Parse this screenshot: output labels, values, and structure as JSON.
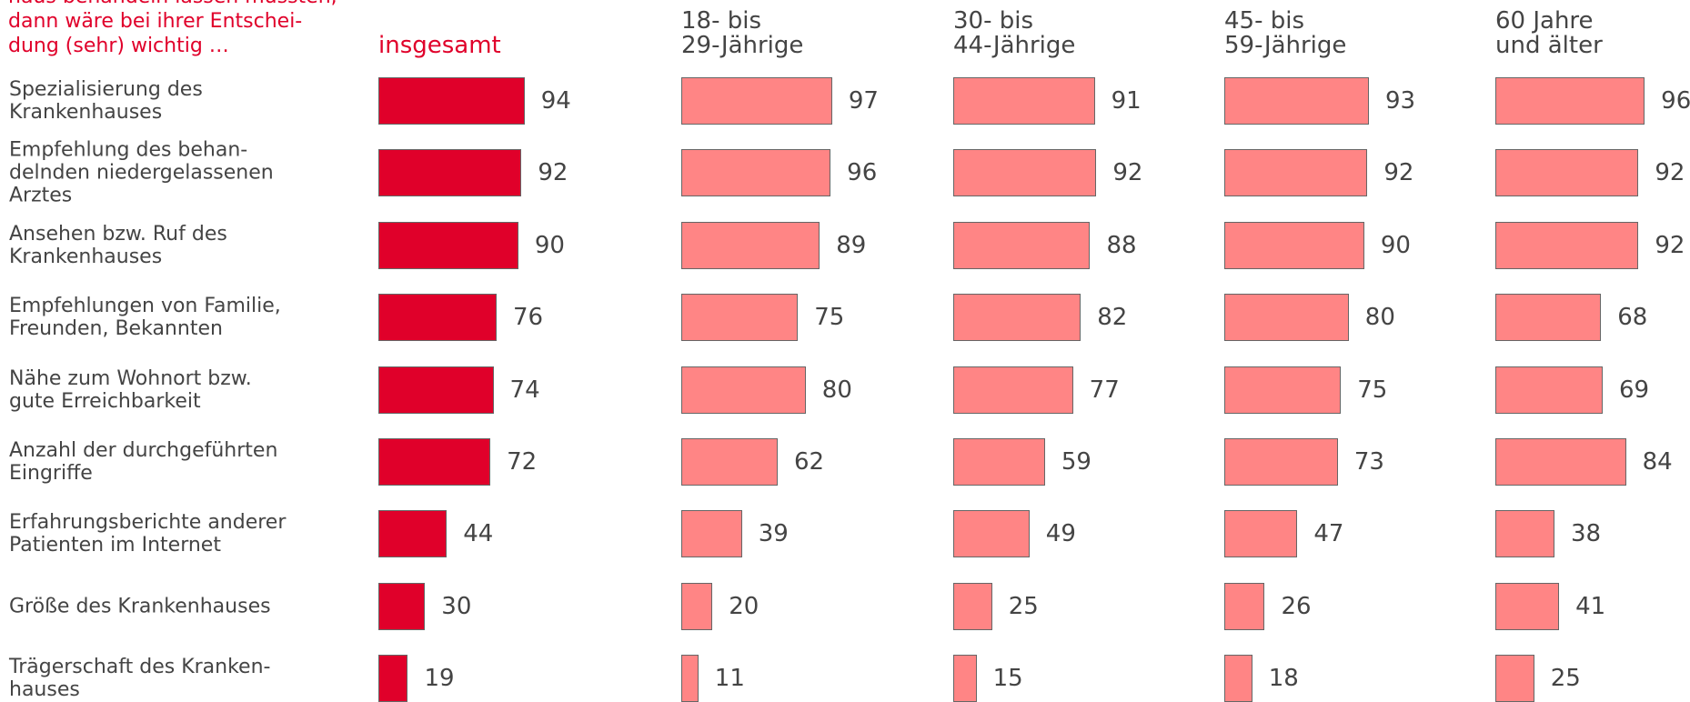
{
  "chart_data": {
    "type": "bar",
    "title": "haus behandeln lassen müssten,\ndann wäre bei ihrer Entschei-\ndung (sehr) wichtig …",
    "categories": [
      "Spezialisierung des\nKrankenhauses",
      "Empfehlung des behan-\ndelnden niedergelassenen\nArztes",
      "Ansehen bzw. Ruf des\nKrankenhauses",
      "Empfehlungen von Familie,\nFreunden, Bekannten",
      "Nähe zum Wohnort bzw.\ngute Erreichbarkeit",
      "Anzahl der durchgeführten\nEingriffe",
      "Erfahrungsberichte anderer\nPatienten im Internet",
      "Größe des Krankenhauses",
      "Trägerschaft des Kranken-\nhauses"
    ],
    "series": [
      {
        "name": "insgesamt",
        "color": "#e0002a",
        "values": [
          94,
          92,
          90,
          76,
          74,
          72,
          44,
          30,
          19
        ]
      },
      {
        "name": "18- bis\n29-Jährige",
        "color": "#ff8585",
        "values": [
          97,
          96,
          89,
          75,
          80,
          62,
          39,
          20,
          11
        ]
      },
      {
        "name": "30- bis\n44-Jährige",
        "color": "#ff8585",
        "values": [
          91,
          92,
          88,
          82,
          77,
          59,
          49,
          25,
          15
        ]
      },
      {
        "name": "45- bis\n59-Jährige",
        "color": "#ff8585",
        "values": [
          93,
          92,
          90,
          80,
          75,
          73,
          47,
          26,
          18
        ]
      },
      {
        "name": "60 Jahre\nund älter",
        "color": "#ff8585",
        "values": [
          96,
          92,
          92,
          68,
          69,
          84,
          38,
          41,
          25
        ]
      }
    ]
  }
}
